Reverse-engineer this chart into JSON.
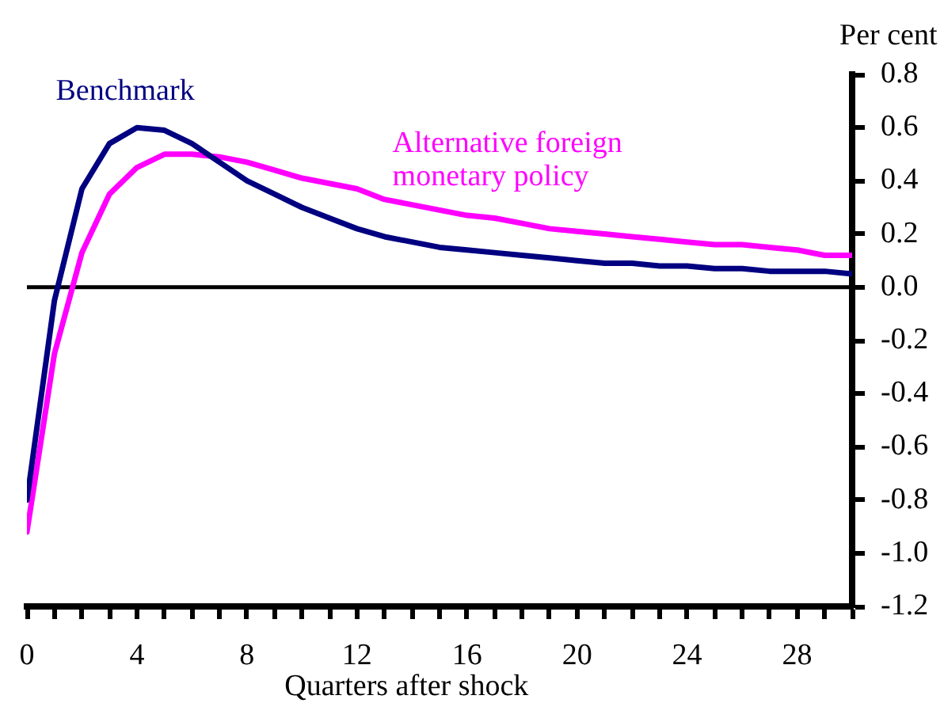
{
  "chart_data": {
    "type": "line",
    "xlabel": "Quarters after shock",
    "ylabel": "Per cent",
    "x": [
      0,
      1,
      2,
      3,
      4,
      5,
      6,
      7,
      8,
      9,
      10,
      11,
      12,
      13,
      14,
      15,
      16,
      17,
      18,
      19,
      20,
      21,
      22,
      23,
      24,
      25,
      26,
      27,
      28,
      29,
      30
    ],
    "series": [
      {
        "name": "Benchmark",
        "color": "#000080",
        "values": [
          -0.8,
          -0.05,
          0.37,
          0.54,
          0.6,
          0.59,
          0.54,
          0.47,
          0.4,
          0.35,
          0.3,
          0.26,
          0.22,
          0.19,
          0.17,
          0.15,
          0.14,
          0.13,
          0.12,
          0.11,
          0.1,
          0.09,
          0.09,
          0.08,
          0.08,
          0.07,
          0.07,
          0.06,
          0.06,
          0.06,
          0.05
        ]
      },
      {
        "name": "Alternative foreign monetary policy",
        "color": "#ff00ff",
        "values": [
          -0.92,
          -0.25,
          0.13,
          0.35,
          0.45,
          0.5,
          0.5,
          0.49,
          0.47,
          0.44,
          0.41,
          0.39,
          0.37,
          0.33,
          0.31,
          0.29,
          0.27,
          0.26,
          0.24,
          0.22,
          0.21,
          0.2,
          0.19,
          0.18,
          0.17,
          0.16,
          0.16,
          0.15,
          0.14,
          0.12,
          0.12
        ]
      }
    ],
    "xlim": [
      0,
      30
    ],
    "xticks": [
      0,
      {
        "value": 1,
        "label": null
      },
      {
        "value": 2,
        "label": null
      },
      {
        "value": 3,
        "label": null
      },
      4,
      {
        "value": 5,
        "label": null
      },
      {
        "value": 6,
        "label": null
      },
      {
        "value": 7,
        "label": null
      },
      8,
      {
        "value": 9,
        "label": null
      },
      {
        "value": 10,
        "label": null
      },
      {
        "value": 11,
        "label": null
      },
      12,
      {
        "value": 13,
        "label": null
      },
      {
        "value": 14,
        "label": null
      },
      {
        "value": 15,
        "label": null
      },
      16,
      {
        "value": 17,
        "label": null
      },
      {
        "value": 18,
        "label": null
      },
      {
        "value": 19,
        "label": null
      },
      20,
      {
        "value": 21,
        "label": null
      },
      {
        "value": 22,
        "label": null
      },
      {
        "value": 23,
        "label": null
      },
      24,
      {
        "value": 25,
        "label": null
      },
      {
        "value": 26,
        "label": null
      },
      {
        "value": 27,
        "label": null
      },
      28,
      {
        "value": 29,
        "label": null
      },
      {
        "value": 30,
        "label": null
      }
    ],
    "ylim": [
      -1.2,
      0.8
    ],
    "yticks": [
      -1.2,
      {
        "value": -1,
        "label": "-1.0"
      },
      -0.8,
      -0.6,
      -0.4,
      -0.2,
      {
        "value": 0,
        "label": "0.0"
      },
      0.2,
      0.4,
      0.6,
      0.8
    ],
    "ref_lines": [
      {
        "axis": "y",
        "value": 0,
        "color": "#000000"
      }
    ],
    "grid": false,
    "legend": false,
    "marker": "none",
    "line_style": "solid"
  }
}
